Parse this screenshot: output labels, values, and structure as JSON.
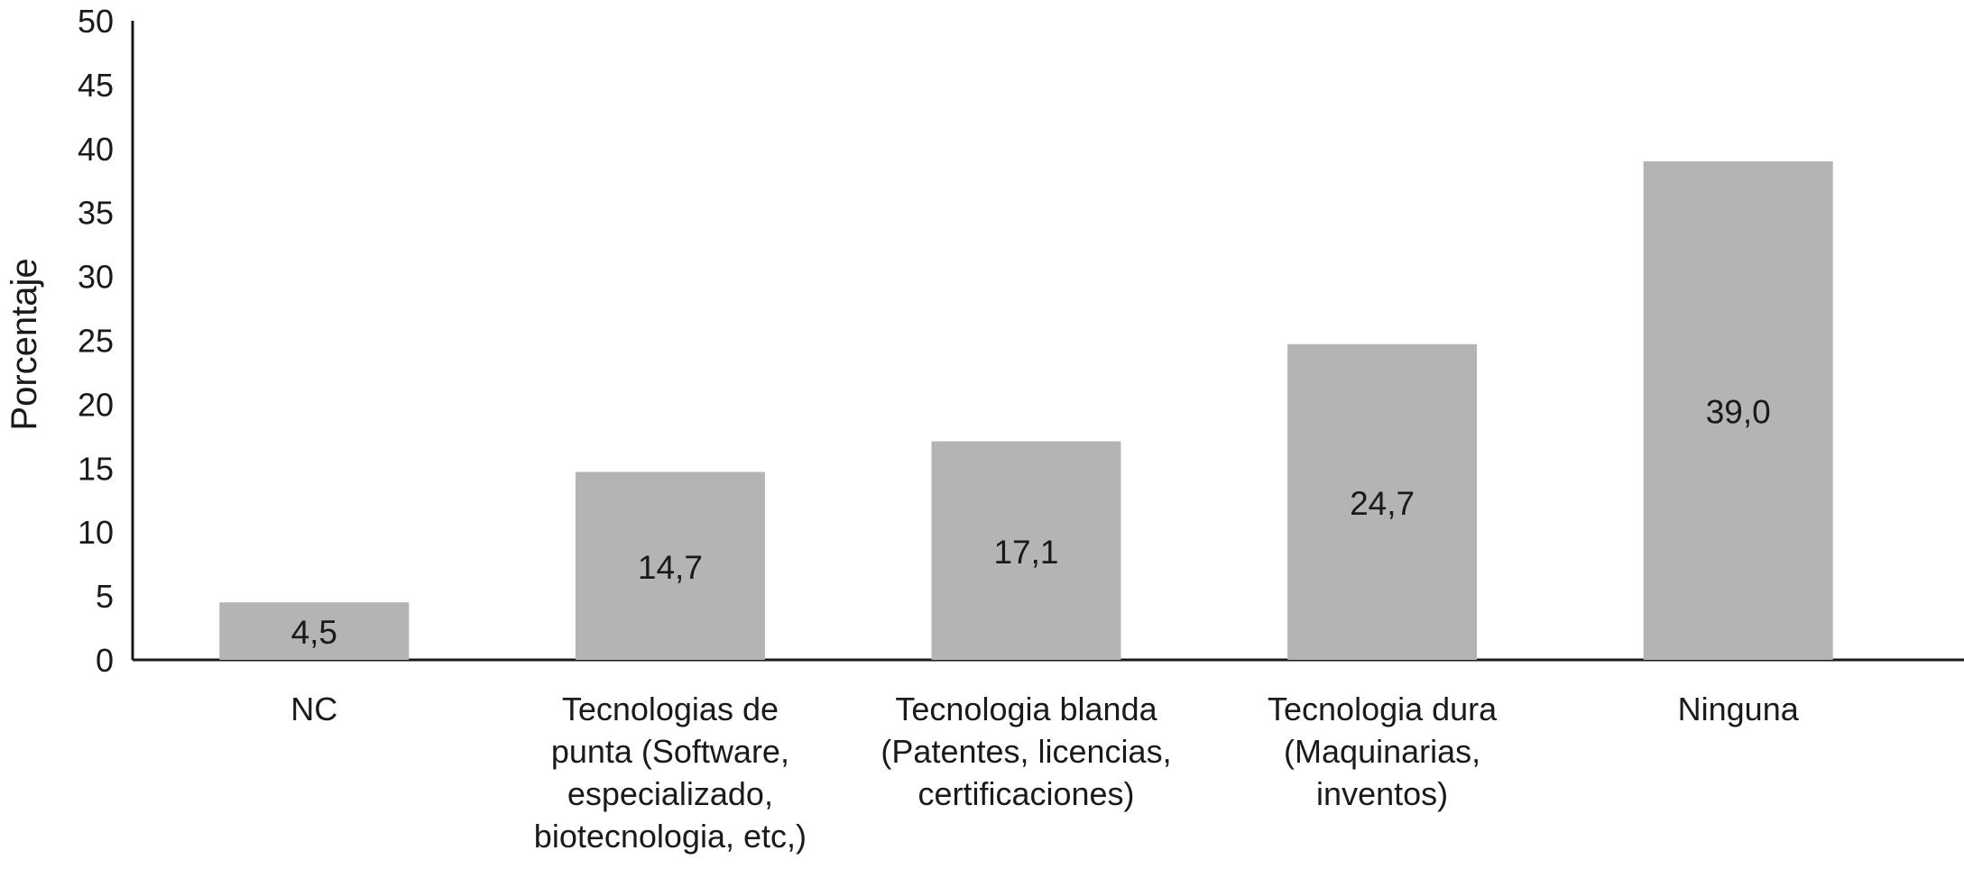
{
  "chart_data": {
    "type": "bar",
    "categories": [
      [
        "NC"
      ],
      [
        "Tecnologias de",
        "punta (Software,",
        "especializado,",
        "biotecnologia, etc,)"
      ],
      [
        "Tecnologia blanda",
        "(Patentes, licencias,",
        "certificaciones)"
      ],
      [
        "Tecnologia dura",
        "(Maquinarias,",
        "inventos)"
      ],
      [
        "Ninguna"
      ]
    ],
    "values": [
      4.5,
      14.7,
      17.1,
      24.7,
      39.0
    ],
    "data_labels": [
      "4,5",
      "14,7",
      "17,1",
      "24,7",
      "39,0"
    ],
    "title": "",
    "xlabel": "",
    "ylabel": "Porcentaje",
    "ylim": [
      0,
      50
    ],
    "yticks": [
      0,
      5,
      10,
      15,
      20,
      25,
      30,
      35,
      40,
      45,
      50
    ],
    "grid": false,
    "legend": "none",
    "bar_color": "#b3b4b6",
    "axis_color": "#1a1a1a"
  }
}
